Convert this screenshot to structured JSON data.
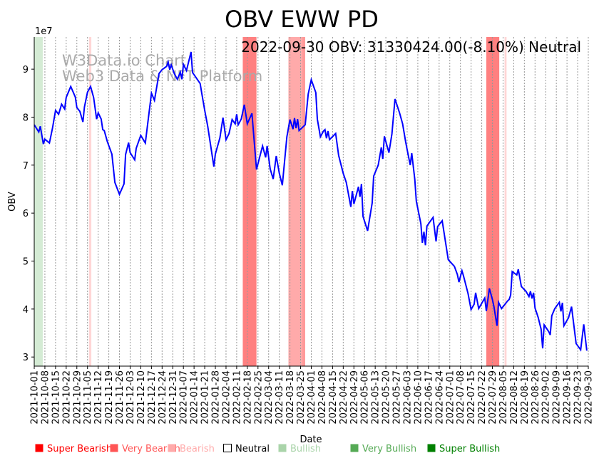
{
  "chart_data": {
    "type": "line",
    "title": "OBV EWW PD",
    "annotation": "2022-09-30 OBV: 31330424.00(-8.10%) Neutral",
    "watermark": [
      "W3Data.io Chart",
      "Web3 Data & NFT Platform"
    ],
    "xlabel": "Date",
    "ylabel": "OBV",
    "y_multiplier_label": "1e7",
    "start_date": "2021-10-01",
    "x_range_days": [
      0,
      364
    ],
    "ylim": [
      2.81,
      9.67
    ],
    "yticks": [
      3,
      4,
      5,
      6,
      7,
      8,
      9
    ],
    "xtick_labels": [
      "2021-10-01",
      "2021-10-08",
      "2021-10-15",
      "2021-10-22",
      "2021-10-29",
      "2021-11-05",
      "2021-11-12",
      "2021-11-19",
      "2021-11-26",
      "2021-12-03",
      "2021-12-10",
      "2021-12-17",
      "2021-12-24",
      "2021-12-31",
      "2022-01-07",
      "2022-01-14",
      "2022-01-21",
      "2022-01-28",
      "2022-02-04",
      "2022-02-11",
      "2022-02-18",
      "2022-02-25",
      "2022-03-04",
      "2022-03-11",
      "2022-03-18",
      "2022-03-25",
      "2022-04-01",
      "2022-04-08",
      "2022-04-15",
      "2022-04-22",
      "2022-04-29",
      "2022-05-06",
      "2022-05-13",
      "2022-05-20",
      "2022-05-27",
      "2022-06-03",
      "2022-06-10",
      "2022-06-17",
      "2022-06-24",
      "2022-07-01",
      "2022-07-08",
      "2022-07-15",
      "2022-07-22",
      "2022-07-29",
      "2022-08-05",
      "2022-08-12",
      "2022-08-19",
      "2022-08-26",
      "2022-09-02",
      "2022-09-09",
      "2022-09-16",
      "2022-09-23",
      "2022-09-30"
    ],
    "xtick_step_days": 7,
    "grid": "vertical dotted",
    "series": [
      {
        "name": "OBV (x1e7)",
        "color": "#0000ff",
        "points_day_value": [
          [
            0,
            7.84
          ],
          [
            3,
            7.69
          ],
          [
            4,
            7.81
          ],
          [
            6,
            7.44
          ],
          [
            7,
            7.54
          ],
          [
            10,
            7.46
          ],
          [
            12,
            7.77
          ],
          [
            14,
            8.14
          ],
          [
            16,
            8.06
          ],
          [
            18,
            8.27
          ],
          [
            20,
            8.17
          ],
          [
            21,
            8.41
          ],
          [
            24,
            8.64
          ],
          [
            27,
            8.42
          ],
          [
            28,
            8.2
          ],
          [
            30,
            8.12
          ],
          [
            32,
            7.9
          ],
          [
            33,
            8.21
          ],
          [
            35,
            8.52
          ],
          [
            37,
            8.64
          ],
          [
            39,
            8.41
          ],
          [
            41,
            7.96
          ],
          [
            42,
            8.09
          ],
          [
            44,
            7.96
          ],
          [
            45,
            7.74
          ],
          [
            46,
            7.72
          ],
          [
            48,
            7.49
          ],
          [
            51,
            7.23
          ],
          [
            53,
            6.64
          ],
          [
            56,
            6.39
          ],
          [
            59,
            6.61
          ],
          [
            60,
            7.22
          ],
          [
            62,
            7.47
          ],
          [
            63,
            7.26
          ],
          [
            66,
            7.11
          ],
          [
            67,
            7.35
          ],
          [
            70,
            7.62
          ],
          [
            73,
            7.46
          ],
          [
            75,
            7.98
          ],
          [
            77,
            8.5
          ],
          [
            79,
            8.35
          ],
          [
            82,
            8.91
          ],
          [
            84,
            8.99
          ],
          [
            87,
            9.06
          ],
          [
            88,
            9.15
          ],
          [
            89,
            8.99
          ],
          [
            90,
            9.09
          ],
          [
            92,
            8.91
          ],
          [
            94,
            8.79
          ],
          [
            96,
            8.94
          ],
          [
            97,
            8.79
          ],
          [
            98,
            9.1
          ],
          [
            100,
            8.97
          ],
          [
            103,
            9.36
          ],
          [
            104,
            8.93
          ],
          [
            109,
            8.7
          ],
          [
            110,
            8.51
          ],
          [
            112,
            8.14
          ],
          [
            114,
            7.81
          ],
          [
            118,
            6.97
          ],
          [
            119,
            7.23
          ],
          [
            122,
            7.57
          ],
          [
            124,
            7.99
          ],
          [
            126,
            7.53
          ],
          [
            128,
            7.66
          ],
          [
            130,
            7.95
          ],
          [
            132,
            7.86
          ],
          [
            133,
            8.06
          ],
          [
            134,
            7.84
          ],
          [
            136,
            7.96
          ],
          [
            138,
            8.26
          ],
          [
            140,
            7.86
          ],
          [
            143,
            8.08
          ],
          [
            146,
            6.91
          ],
          [
            149,
            7.28
          ],
          [
            150,
            7.4
          ],
          [
            152,
            7.16
          ],
          [
            153,
            7.4
          ],
          [
            155,
            6.92
          ],
          [
            157,
            6.71
          ],
          [
            159,
            7.19
          ],
          [
            161,
            6.83
          ],
          [
            163,
            6.58
          ],
          [
            166,
            7.59
          ],
          [
            168,
            7.95
          ],
          [
            170,
            7.75
          ],
          [
            171,
            7.98
          ],
          [
            172,
            7.77
          ],
          [
            173,
            7.96
          ],
          [
            174,
            7.72
          ],
          [
            178,
            7.84
          ],
          [
            180,
            8.48
          ],
          [
            182,
            8.78
          ],
          [
            185,
            8.51
          ],
          [
            186,
            7.96
          ],
          [
            188,
            7.59
          ],
          [
            190,
            7.71
          ],
          [
            191,
            7.74
          ],
          [
            192,
            7.56
          ],
          [
            193,
            7.71
          ],
          [
            194,
            7.53
          ],
          [
            198,
            7.66
          ],
          [
            200,
            7.2
          ],
          [
            203,
            6.83
          ],
          [
            205,
            6.64
          ],
          [
            208,
            6.13
          ],
          [
            209,
            6.46
          ],
          [
            210,
            6.19
          ],
          [
            213,
            6.55
          ],
          [
            214,
            6.34
          ],
          [
            215,
            6.61
          ],
          [
            216,
            5.93
          ],
          [
            219,
            5.63
          ],
          [
            222,
            6.21
          ],
          [
            223,
            6.77
          ],
          [
            226,
            7.0
          ],
          [
            228,
            7.37
          ],
          [
            229,
            7.13
          ],
          [
            230,
            7.6
          ],
          [
            233,
            7.26
          ],
          [
            235,
            7.65
          ],
          [
            237,
            8.38
          ],
          [
            240,
            8.09
          ],
          [
            242,
            7.86
          ],
          [
            244,
            7.49
          ],
          [
            245,
            7.32
          ],
          [
            247,
            7.0
          ],
          [
            248,
            7.25
          ],
          [
            250,
            6.7
          ],
          [
            251,
            6.25
          ],
          [
            254,
            5.78
          ],
          [
            255,
            5.38
          ],
          [
            256,
            5.61
          ],
          [
            257,
            5.33
          ],
          [
            258,
            5.73
          ],
          [
            262,
            5.91
          ],
          [
            264,
            5.41
          ],
          [
            265,
            5.72
          ],
          [
            268,
            5.84
          ],
          [
            272,
            5.03
          ],
          [
            276,
            4.89
          ],
          [
            278,
            4.72
          ],
          [
            279,
            4.56
          ],
          [
            281,
            4.8
          ],
          [
            282,
            4.69
          ],
          [
            285,
            4.32
          ],
          [
            287,
            3.99
          ],
          [
            289,
            4.1
          ],
          [
            290,
            4.34
          ],
          [
            292,
            4.01
          ],
          [
            296,
            4.23
          ],
          [
            297,
            3.96
          ],
          [
            299,
            4.43
          ],
          [
            301,
            4.2
          ],
          [
            302,
            4.05
          ],
          [
            304,
            3.65
          ],
          [
            305,
            4.14
          ],
          [
            307,
            4.01
          ],
          [
            311,
            4.17
          ],
          [
            312,
            4.2
          ],
          [
            313,
            4.29
          ],
          [
            314,
            4.78
          ],
          [
            317,
            4.71
          ],
          [
            318,
            4.83
          ],
          [
            320,
            4.47
          ],
          [
            323,
            4.37
          ],
          [
            325,
            4.26
          ],
          [
            326,
            4.37
          ],
          [
            327,
            4.22
          ],
          [
            328,
            4.34
          ],
          [
            329,
            4.02
          ],
          [
            331,
            3.83
          ],
          [
            333,
            3.58
          ],
          [
            334,
            3.18
          ],
          [
            335,
            3.67
          ],
          [
            338,
            3.53
          ],
          [
            339,
            3.46
          ],
          [
            340,
            3.86
          ],
          [
            342,
            4.01
          ],
          [
            345,
            4.14
          ],
          [
            346,
            3.95
          ],
          [
            347,
            4.13
          ],
          [
            348,
            3.65
          ],
          [
            351,
            3.82
          ],
          [
            353,
            4.05
          ],
          [
            356,
            3.28
          ],
          [
            359,
            3.15
          ],
          [
            361,
            3.68
          ],
          [
            363,
            3.133
          ]
        ]
      }
    ],
    "sentiment_bands": [
      {
        "from_day": 0,
        "to_day": 5.6,
        "sentiment": "Bullish",
        "color": "#d4ebd4"
      },
      {
        "from_day": 36,
        "to_day": 37.5,
        "sentiment": "Bearish",
        "color": "#ffd6d6"
      },
      {
        "from_day": 137,
        "to_day": 146,
        "sentiment": "Super Bearish",
        "color": "#ff8080"
      },
      {
        "from_day": 167,
        "to_day": 176,
        "sentiment": "Bearish",
        "color": "#ffaaaa"
      },
      {
        "from_day": 176,
        "to_day": 178,
        "sentiment": "Very Bearish",
        "color": "#ff9999"
      },
      {
        "from_day": 297,
        "to_day": 305.5,
        "sentiment": "Super Bearish",
        "color": "#ff8080"
      },
      {
        "from_day": 309,
        "to_day": 310.3,
        "sentiment": "Bearish",
        "color": "#ffd6d6"
      }
    ],
    "legend": {
      "placement": "bottom",
      "items": [
        {
          "label": "Super Bearish",
          "color": "#ff0000"
        },
        {
          "label": "Very Bearish",
          "color": "#ff5555"
        },
        {
          "label": "Bearish",
          "color": "#ffaaaa"
        },
        {
          "label": "Neutral",
          "color": "#000000",
          "hollow": true
        },
        {
          "label": "Bullish",
          "color": "#aad4aa"
        },
        {
          "label": "Very Bullish",
          "color": "#55aa55"
        },
        {
          "label": "Super Bullish",
          "color": "#008000"
        }
      ]
    }
  }
}
